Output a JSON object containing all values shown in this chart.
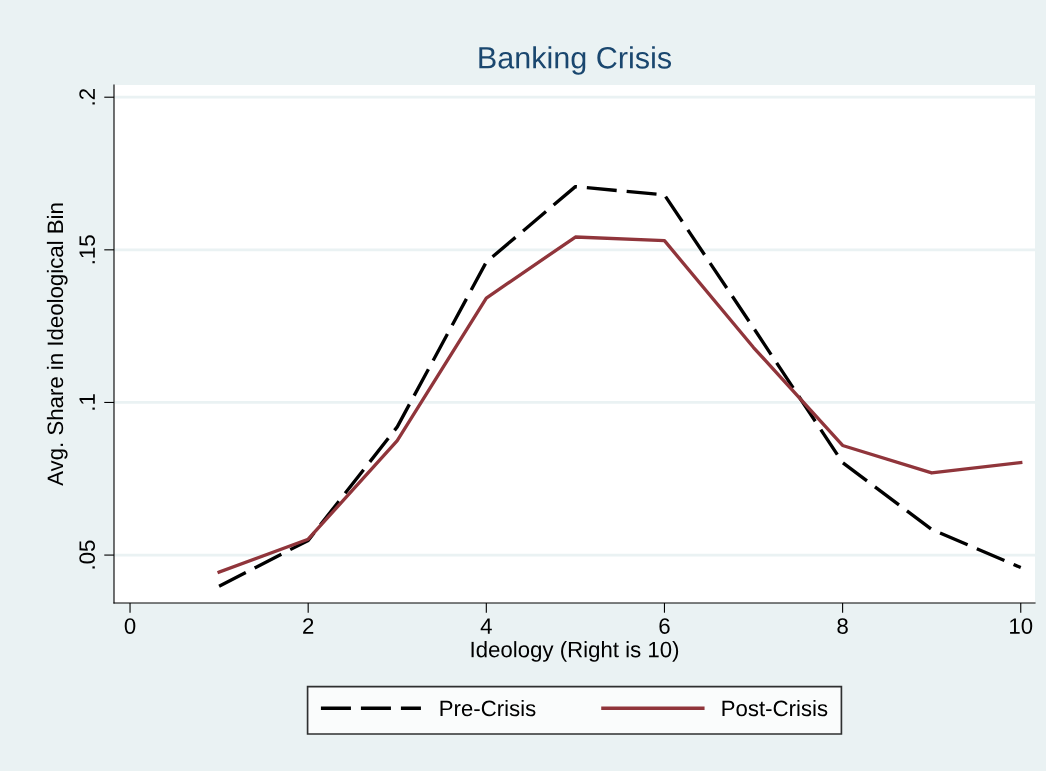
{
  "chart_data": {
    "type": "line",
    "title": "Banking Crisis",
    "xlabel": "Ideology (Right is 10)",
    "ylabel": "Avg. Share in Ideological Bin",
    "x": [
      1,
      2,
      3,
      4,
      5,
      6,
      7,
      8,
      9,
      10
    ],
    "series": [
      {
        "name": "Pre-Crisis",
        "color": "#000000",
        "line_style": "dashed",
        "values": [
          0.0398,
          0.0548,
          0.092,
          0.146,
          0.1707,
          0.168,
          0.1244,
          0.0803,
          0.0584,
          0.0459
        ]
      },
      {
        "name": "Post-Crisis",
        "color": "#90353b",
        "line_style": "solid",
        "values": [
          0.0444,
          0.0552,
          0.0875,
          0.1342,
          0.1542,
          0.153,
          0.118,
          0.0859,
          0.0769,
          0.0803
        ]
      }
    ],
    "xlim": [
      -0.18,
      10.16
    ],
    "xticks": [
      0,
      2,
      4,
      6,
      8,
      10
    ],
    "ylim": [
      0.0343,
      0.204
    ],
    "yticks": [
      {
        "value": 0.05,
        "label": ".05"
      },
      {
        "value": 0.1,
        "label": ".1"
      },
      {
        "value": 0.15,
        "label": ".15"
      },
      {
        "value": 0.2,
        "label": ".2"
      }
    ],
    "grid": "y",
    "legend": "bottom"
  }
}
